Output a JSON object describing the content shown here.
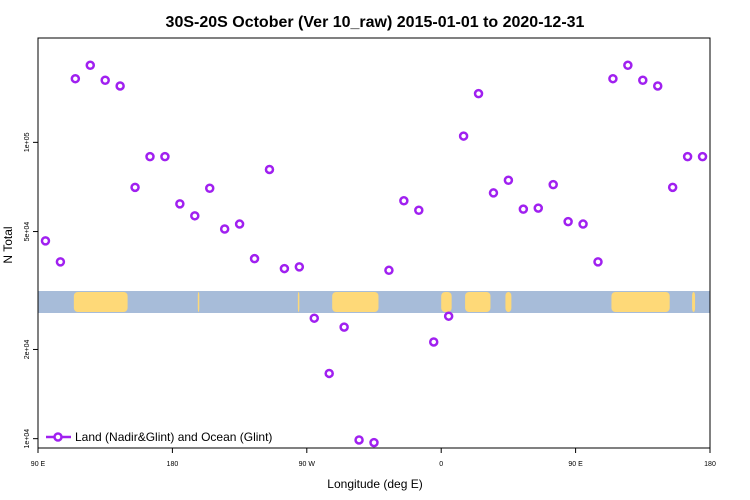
{
  "chart_data": {
    "type": "scatter",
    "title": "30S-20S October (Ver 10_raw)   2015-01-01 to 2020-12-31",
    "xlabel": "Longitude (deg E)",
    "ylabel": "N Total",
    "y_scale": "log",
    "xlim": [
      90,
      540
    ],
    "ylim": [
      9300,
      225000
    ],
    "x_ticks": [
      {
        "value": 90,
        "label": "90 E"
      },
      {
        "value": 180,
        "label": "180"
      },
      {
        "value": 270,
        "label": "90 W"
      },
      {
        "value": 360,
        "label": "0"
      },
      {
        "value": 450,
        "label": "90 E"
      },
      {
        "value": 540,
        "label": "180"
      }
    ],
    "y_ticks": [
      {
        "value": 10000,
        "label": "1e+04"
      },
      {
        "value": 20000,
        "label": "2e+04"
      },
      {
        "value": 50000,
        "label": "5e+04"
      },
      {
        "value": 100000,
        "label": "1e+05"
      }
    ],
    "legend": {
      "placement": "bottom-left"
    },
    "series": [
      {
        "name": "Land (Nadir&Glint) and Ocean (Glint)",
        "color": "#a020f0",
        "points": [
          {
            "x": 95,
            "y": 46500
          },
          {
            "x": 105,
            "y": 39500
          },
          {
            "x": 115,
            "y": 164000
          },
          {
            "x": 125,
            "y": 182000
          },
          {
            "x": 135,
            "y": 162000
          },
          {
            "x": 145,
            "y": 155000
          },
          {
            "x": 155,
            "y": 70500
          },
          {
            "x": 165,
            "y": 89500
          },
          {
            "x": 175,
            "y": 89500
          },
          {
            "x": 185,
            "y": 62000
          },
          {
            "x": 195,
            "y": 56500
          },
          {
            "x": 205,
            "y": 70000
          },
          {
            "x": 215,
            "y": 51000
          },
          {
            "x": 225,
            "y": 53000
          },
          {
            "x": 235,
            "y": 40500
          },
          {
            "x": 245,
            "y": 81000
          },
          {
            "x": 255,
            "y": 37500
          },
          {
            "x": 265,
            "y": 38000
          },
          {
            "x": 275,
            "y": 25500
          },
          {
            "x": 285,
            "y": 16600
          },
          {
            "x": 295,
            "y": 23800
          },
          {
            "x": 305,
            "y": 9900
          },
          {
            "x": 315,
            "y": 9700
          },
          {
            "x": 325,
            "y": 37000
          },
          {
            "x": 335,
            "y": 63500
          },
          {
            "x": 345,
            "y": 59000
          },
          {
            "x": 355,
            "y": 21200
          },
          {
            "x": 365,
            "y": 25900
          },
          {
            "x": 375,
            "y": 105000
          },
          {
            "x": 385,
            "y": 146000
          },
          {
            "x": 395,
            "y": 67500
          },
          {
            "x": 405,
            "y": 74500
          },
          {
            "x": 415,
            "y": 59500
          },
          {
            "x": 425,
            "y": 60000
          },
          {
            "x": 435,
            "y": 72000
          },
          {
            "x": 445,
            "y": 54000
          },
          {
            "x": 455,
            "y": 53000
          },
          {
            "x": 465,
            "y": 39500
          },
          {
            "x": 475,
            "y": 164000
          },
          {
            "x": 485,
            "y": 182000
          },
          {
            "x": 495,
            "y": 162000
          },
          {
            "x": 505,
            "y": 155000
          },
          {
            "x": 515,
            "y": 70500
          },
          {
            "x": 525,
            "y": 89500
          },
          {
            "x": 535,
            "y": 89500
          }
        ]
      }
    ],
    "map_strip": {
      "ocean_color": "#a7bcd9",
      "land_color": "#fed978",
      "land_segments": [
        [
          114,
          150
        ],
        [
          197,
          198
        ],
        [
          264,
          265
        ],
        [
          287,
          318
        ],
        [
          360,
          367
        ],
        [
          376,
          393
        ],
        [
          403,
          407
        ],
        [
          474,
          513
        ],
        [
          528,
          530
        ]
      ]
    }
  }
}
